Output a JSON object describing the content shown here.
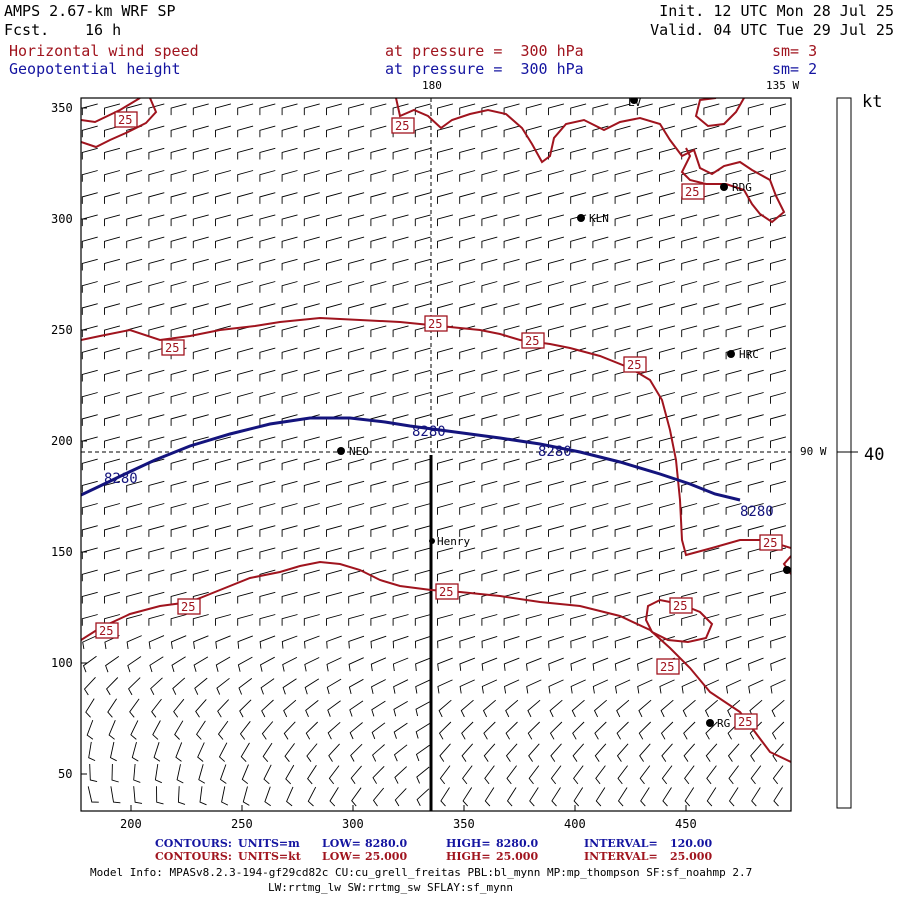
{
  "header": {
    "model_title": "AMPS 2.67-km WRF SP",
    "forecast_label": "Fcst.",
    "forecast_hours": "16 h",
    "init_line": "Init. 12 UTC Mon 28 Jul 25",
    "valid_line": "Valid. 04 UTC Tue 29 Jul 25",
    "field1_name": "Horizontal wind speed",
    "field1_level": "at pressure =  300 hPa",
    "field1_sm": "sm= 3",
    "field2_name": "Geopotential height",
    "field2_level": "at pressure =  300 hPa",
    "field2_sm": "sm= 2"
  },
  "map": {
    "meridian_label_top": "180",
    "meridian_label_right": "135 W",
    "parallel_label_right": "90 W",
    "x_ticks": [
      "200",
      "250",
      "300",
      "350",
      "400",
      "450"
    ],
    "y_ticks": [
      "350",
      "300",
      "250",
      "200",
      "150",
      "100",
      "50"
    ],
    "stations": [
      {
        "id": "LV",
        "label": "LV"
      },
      {
        "id": "KLN",
        "label": "KLN"
      },
      {
        "id": "RDG",
        "label": "RDG"
      },
      {
        "id": "HRC",
        "label": "HRC"
      },
      {
        "id": "NEO",
        "label": "NEO"
      },
      {
        "id": "Henry",
        "label": "Henry"
      },
      {
        "id": "RG",
        "label": "RG"
      },
      {
        "id": "E",
        "label": ""
      }
    ],
    "wind_contour_label": "25",
    "height_contour_label": "8280",
    "colors": {
      "wind_contour": "#a0141e",
      "height_contour": "#14147d",
      "barbs": "#000000"
    }
  },
  "colorbar": {
    "unit": "kt",
    "value": "40"
  },
  "footer": {
    "row1": {
      "title": "CONTOURS:",
      "units": "UNITS=m",
      "low_label": "LOW=",
      "low": "8280.0",
      "high_label": "HIGH=",
      "high": "8280.0",
      "interval_label": "INTERVAL=",
      "interval": "120.00"
    },
    "row2": {
      "title": "CONTOURS:",
      "units": "UNITS=kt",
      "low_label": "LOW=",
      "low": "25.000",
      "high_label": "HIGH=",
      "high": "25.000",
      "interval_label": "INTERVAL=",
      "interval": "25.000"
    },
    "model_info": "Model Info: MPASv8.2.3-194-gf29cd82c CU:cu_grell_freitas PBL:bl_mynn MP:mp_thompson SF:sf_noahmp 2.7",
    "model_info2": "LW:rrtmg_lw SW:rrtmg_sw SFLAY:sf_mynn"
  }
}
